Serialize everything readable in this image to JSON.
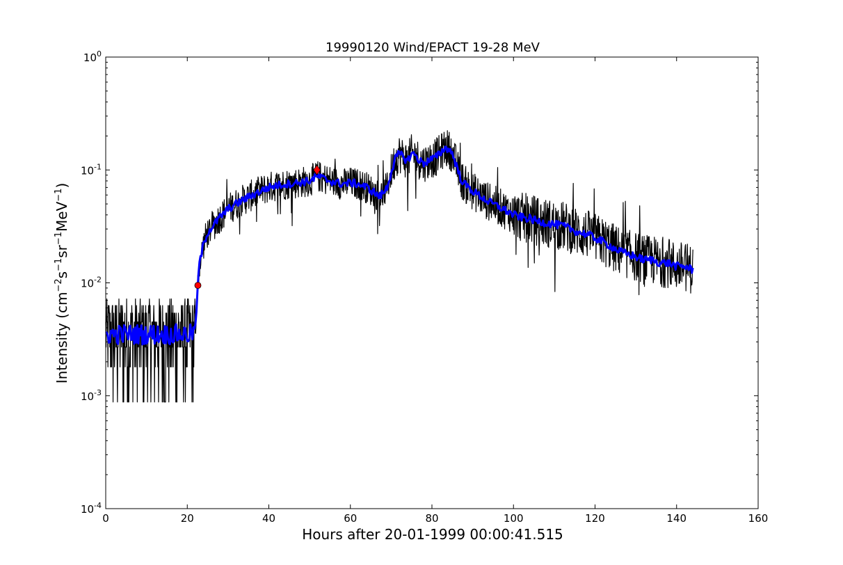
{
  "chart_data": {
    "type": "line",
    "title": "19990120 Wind/EPACT 19-28 MeV",
    "xlabel": "Hours after 20-01-1999 00:00:41.515",
    "ylabel_parts": [
      "Intensity (cm",
      "−2",
      "s",
      "−1",
      "sr",
      "−1",
      "MeV",
      "−1",
      ")"
    ],
    "xlim": [
      0,
      160
    ],
    "ylim": [
      0.0001,
      1
    ],
    "yscale": "log",
    "grid": false,
    "x_ticks": [
      0,
      20,
      40,
      60,
      80,
      100,
      120,
      140,
      160
    ],
    "y_ticks": [
      {
        "value": 0.0001,
        "base": "10",
        "exp": "-4"
      },
      {
        "value": 0.001,
        "base": "10",
        "exp": "-3"
      },
      {
        "value": 0.01,
        "base": "10",
        "exp": "-2"
      },
      {
        "value": 0.1,
        "base": "10",
        "exp": "-1"
      },
      {
        "value": 1,
        "base": "10",
        "exp": "0"
      }
    ],
    "colors": {
      "raw": "#000000",
      "smoothed": "#0000ff",
      "markers": "#ff0000"
    },
    "series": [
      {
        "style": "raw-noisy",
        "color": "#000000",
        "x": [
          0,
          2,
          4,
          6,
          8,
          10,
          12,
          14,
          16,
          18,
          20,
          21,
          22,
          22.5,
          23,
          24,
          25,
          26,
          28,
          30,
          32,
          34,
          36,
          38,
          40,
          42,
          44,
          46,
          48,
          50,
          52,
          54,
          56,
          58,
          60,
          62,
          64,
          66,
          67,
          68,
          69,
          70,
          71,
          72,
          73,
          74,
          75,
          76,
          77,
          78,
          79,
          80,
          81,
          82,
          83,
          84,
          85,
          86,
          87,
          88,
          90,
          92,
          94,
          96,
          98,
          100,
          102,
          104,
          106,
          108,
          110,
          112,
          114,
          116,
          118,
          120,
          122,
          124,
          126,
          128,
          130,
          132,
          134,
          136,
          138,
          140,
          142,
          144
        ],
        "y": [
          0.0035,
          0.0035,
          0.0035,
          0.0035,
          0.0035,
          0.0035,
          0.0035,
          0.0035,
          0.0035,
          0.0035,
          0.0035,
          0.0035,
          0.004,
          0.0085,
          0.015,
          0.022,
          0.028,
          0.031,
          0.038,
          0.045,
          0.05,
          0.055,
          0.06,
          0.065,
          0.07,
          0.073,
          0.075,
          0.076,
          0.078,
          0.08,
          0.088,
          0.082,
          0.078,
          0.075,
          0.077,
          0.075,
          0.07,
          0.063,
          0.058,
          0.062,
          0.07,
          0.095,
          0.125,
          0.14,
          0.13,
          0.12,
          0.14,
          0.135,
          0.12,
          0.115,
          0.12,
          0.125,
          0.13,
          0.14,
          0.155,
          0.155,
          0.14,
          0.11,
          0.085,
          0.075,
          0.065,
          0.058,
          0.052,
          0.048,
          0.044,
          0.04,
          0.038,
          0.037,
          0.035,
          0.034,
          0.033,
          0.032,
          0.03,
          0.028,
          0.027,
          0.025,
          0.023,
          0.021,
          0.019,
          0.018,
          0.017,
          0.016,
          0.016,
          0.015,
          0.015,
          0.014,
          0.014,
          0.013
        ]
      },
      {
        "style": "smoothed",
        "color": "#0000ff",
        "x": [
          0,
          2,
          4,
          6,
          8,
          10,
          12,
          14,
          16,
          18,
          20,
          21,
          22,
          22.5,
          23,
          24,
          25,
          26,
          28,
          30,
          32,
          34,
          36,
          38,
          40,
          42,
          44,
          46,
          48,
          50,
          52,
          54,
          56,
          58,
          60,
          62,
          64,
          66,
          67,
          68,
          69,
          70,
          71,
          72,
          73,
          74,
          75,
          76,
          77,
          78,
          79,
          80,
          81,
          82,
          83,
          84,
          85,
          86,
          87,
          88,
          90,
          92,
          94,
          96,
          98,
          100,
          102,
          104,
          106,
          108,
          110,
          112,
          114,
          116,
          118,
          120,
          122,
          124,
          126,
          128,
          130,
          132,
          134,
          136,
          138,
          140,
          142,
          144
        ],
        "y": [
          0.0035,
          0.0035,
          0.0035,
          0.0035,
          0.0035,
          0.0035,
          0.0035,
          0.0035,
          0.0035,
          0.0035,
          0.0035,
          0.0035,
          0.004,
          0.0085,
          0.015,
          0.022,
          0.028,
          0.031,
          0.038,
          0.045,
          0.05,
          0.055,
          0.06,
          0.065,
          0.07,
          0.073,
          0.075,
          0.076,
          0.078,
          0.08,
          0.088,
          0.082,
          0.078,
          0.075,
          0.077,
          0.075,
          0.07,
          0.063,
          0.058,
          0.062,
          0.07,
          0.095,
          0.125,
          0.14,
          0.13,
          0.12,
          0.14,
          0.135,
          0.12,
          0.115,
          0.12,
          0.125,
          0.13,
          0.14,
          0.155,
          0.155,
          0.14,
          0.11,
          0.085,
          0.075,
          0.065,
          0.058,
          0.052,
          0.048,
          0.044,
          0.04,
          0.038,
          0.037,
          0.035,
          0.034,
          0.033,
          0.032,
          0.03,
          0.028,
          0.027,
          0.025,
          0.023,
          0.021,
          0.019,
          0.018,
          0.017,
          0.016,
          0.016,
          0.015,
          0.015,
          0.014,
          0.014,
          0.013
        ]
      }
    ],
    "markers": [
      {
        "shape": "circle",
        "x": 22.6,
        "y": 0.0095
      },
      {
        "shape": "diamond",
        "x": 51.8,
        "y": 0.1
      }
    ]
  }
}
